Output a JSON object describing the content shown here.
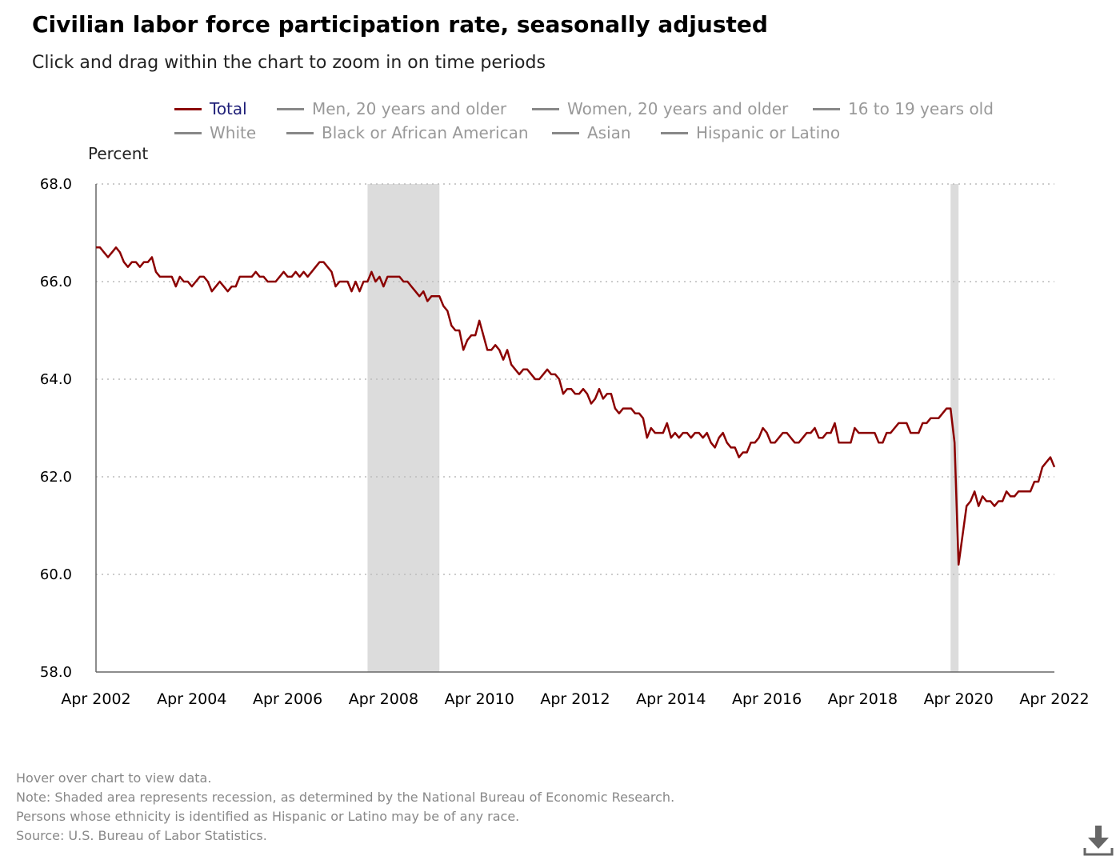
{
  "header": {
    "title": "Civilian labor force participation rate, seasonally adjusted",
    "subtitle": "Click and drag within the chart to zoom in on time periods"
  },
  "legend": {
    "items": [
      {
        "label": "Total",
        "active": true
      },
      {
        "label": "Men, 20 years and older",
        "active": false
      },
      {
        "label": "Women, 20 years and older",
        "active": false
      },
      {
        "label": "16 to 19 years old",
        "active": false
      },
      {
        "label": "White",
        "active": false
      },
      {
        "label": "Black or African American",
        "active": false
      },
      {
        "label": "Asian",
        "active": false
      },
      {
        "label": "Hispanic or Latino",
        "active": false
      }
    ]
  },
  "notes": {
    "hover": "Hover over chart to view data.",
    "recession": "Note: Shaded area represents recession, as determined by the National Bureau of Economic Research.",
    "ethnicity": "Persons whose ethnicity is identified as Hispanic or Latino may be of any race.",
    "source": "Source: U.S. Bureau of Labor Statistics."
  },
  "icons": {
    "download": "download-icon"
  },
  "colors": {
    "series": "#8b0000",
    "recession": "#dcdcdc",
    "gridline": "#bbbbbb",
    "legend_active_text": "#1f1f78",
    "legend_inactive": "#999999"
  },
  "chart_data": {
    "type": "line",
    "title": "Civilian labor force participation rate, seasonally adjusted",
    "ylabel": "Percent",
    "xlabel": "",
    "ylim": [
      58.0,
      68.0
    ],
    "yticks": [
      "58.0",
      "60.0",
      "62.0",
      "64.0",
      "66.0",
      "68.0"
    ],
    "x_start": "Apr 2002",
    "x_end": "Apr 2022",
    "x_ticks": [
      "Apr 2002",
      "Apr 2004",
      "Apr 2006",
      "Apr 2008",
      "Apr 2010",
      "Apr 2012",
      "Apr 2014",
      "Apr 2016",
      "Apr 2018",
      "Apr 2020",
      "Apr 2022"
    ],
    "grid": "horizontal dotted",
    "recessions": [
      {
        "start": "Dec 2007",
        "end": "Jun 2009"
      },
      {
        "start": "Feb 2020",
        "end": "Apr 2020"
      }
    ],
    "series": [
      {
        "name": "Total",
        "x": [
          "Apr 2002",
          "May 2002",
          "Jun 2002",
          "Jul 2002",
          "Aug 2002",
          "Sep 2002",
          "Oct 2002",
          "Nov 2002",
          "Dec 2002",
          "Jan 2003",
          "Feb 2003",
          "Mar 2003",
          "Apr 2003",
          "May 2003",
          "Jun 2003",
          "Jul 2003",
          "Aug 2003",
          "Sep 2003",
          "Oct 2003",
          "Nov 2003",
          "Dec 2003",
          "Jan 2004",
          "Feb 2004",
          "Mar 2004",
          "Apr 2004",
          "May 2004",
          "Jun 2004",
          "Jul 2004",
          "Aug 2004",
          "Sep 2004",
          "Oct 2004",
          "Nov 2004",
          "Dec 2004",
          "Jan 2005",
          "Feb 2005",
          "Mar 2005",
          "Apr 2005",
          "May 2005",
          "Jun 2005",
          "Jul 2005",
          "Aug 2005",
          "Sep 2005",
          "Oct 2005",
          "Nov 2005",
          "Dec 2005",
          "Jan 2006",
          "Feb 2006",
          "Mar 2006",
          "Apr 2006",
          "May 2006",
          "Jun 2006",
          "Jul 2006",
          "Aug 2006",
          "Sep 2006",
          "Oct 2006",
          "Nov 2006",
          "Dec 2006",
          "Jan 2007",
          "Feb 2007",
          "Mar 2007",
          "Apr 2007",
          "May 2007",
          "Jun 2007",
          "Jul 2007",
          "Aug 2007",
          "Sep 2007",
          "Oct 2007",
          "Nov 2007",
          "Dec 2007",
          "Jan 2008",
          "Feb 2008",
          "Mar 2008",
          "Apr 2008",
          "May 2008",
          "Jun 2008",
          "Jul 2008",
          "Aug 2008",
          "Sep 2008",
          "Oct 2008",
          "Nov 2008",
          "Dec 2008",
          "Jan 2009",
          "Feb 2009",
          "Mar 2009",
          "Apr 2009",
          "May 2009",
          "Jun 2009",
          "Jul 2009",
          "Aug 2009",
          "Sep 2009",
          "Oct 2009",
          "Nov 2009",
          "Dec 2009",
          "Jan 2010",
          "Feb 2010",
          "Mar 2010",
          "Apr 2010",
          "May 2010",
          "Jun 2010",
          "Jul 2010",
          "Aug 2010",
          "Sep 2010",
          "Oct 2010",
          "Nov 2010",
          "Dec 2010",
          "Jan 2011",
          "Feb 2011",
          "Mar 2011",
          "Apr 2011",
          "May 2011",
          "Jun 2011",
          "Jul 2011",
          "Aug 2011",
          "Sep 2011",
          "Oct 2011",
          "Nov 2011",
          "Dec 2011",
          "Jan 2012",
          "Feb 2012",
          "Mar 2012",
          "Apr 2012",
          "May 2012",
          "Jun 2012",
          "Jul 2012",
          "Aug 2012",
          "Sep 2012",
          "Oct 2012",
          "Nov 2012",
          "Dec 2012",
          "Jan 2013",
          "Feb 2013",
          "Mar 2013",
          "Apr 2013",
          "May 2013",
          "Jun 2013",
          "Jul 2013",
          "Aug 2013",
          "Sep 2013",
          "Oct 2013",
          "Nov 2013",
          "Dec 2013",
          "Jan 2014",
          "Feb 2014",
          "Mar 2014",
          "Apr 2014",
          "May 2014",
          "Jun 2014",
          "Jul 2014",
          "Aug 2014",
          "Sep 2014",
          "Oct 2014",
          "Nov 2014",
          "Dec 2014",
          "Jan 2015",
          "Feb 2015",
          "Mar 2015",
          "Apr 2015",
          "May 2015",
          "Jun 2015",
          "Jul 2015",
          "Aug 2015",
          "Sep 2015",
          "Oct 2015",
          "Nov 2015",
          "Dec 2015",
          "Jan 2016",
          "Feb 2016",
          "Mar 2016",
          "Apr 2016",
          "May 2016",
          "Jun 2016",
          "Jul 2016",
          "Aug 2016",
          "Sep 2016",
          "Oct 2016",
          "Nov 2016",
          "Dec 2016",
          "Jan 2017",
          "Feb 2017",
          "Mar 2017",
          "Apr 2017",
          "May 2017",
          "Jun 2017",
          "Jul 2017",
          "Aug 2017",
          "Sep 2017",
          "Oct 2017",
          "Nov 2017",
          "Dec 2017",
          "Jan 2018",
          "Feb 2018",
          "Mar 2018",
          "Apr 2018",
          "May 2018",
          "Jun 2018",
          "Jul 2018",
          "Aug 2018",
          "Sep 2018",
          "Oct 2018",
          "Nov 2018",
          "Dec 2018",
          "Jan 2019",
          "Feb 2019",
          "Mar 2019",
          "Apr 2019",
          "May 2019",
          "Jun 2019",
          "Jul 2019",
          "Aug 2019",
          "Sep 2019",
          "Oct 2019",
          "Nov 2019",
          "Dec 2019",
          "Jan 2020",
          "Feb 2020",
          "Mar 2020",
          "Apr 2020",
          "May 2020",
          "Jun 2020",
          "Jul 2020",
          "Aug 2020",
          "Sep 2020",
          "Oct 2020",
          "Nov 2020",
          "Dec 2020",
          "Jan 2021",
          "Feb 2021",
          "Mar 2021",
          "Apr 2021",
          "May 2021",
          "Jun 2021",
          "Jul 2021",
          "Aug 2021",
          "Sep 2021",
          "Oct 2021",
          "Nov 2021",
          "Dec 2021",
          "Jan 2022",
          "Feb 2022",
          "Mar 2022",
          "Apr 2022"
        ],
        "values": [
          66.7,
          66.7,
          66.6,
          66.5,
          66.6,
          66.7,
          66.6,
          66.4,
          66.3,
          66.4,
          66.4,
          66.3,
          66.4,
          66.4,
          66.5,
          66.2,
          66.1,
          66.1,
          66.1,
          66.1,
          65.9,
          66.1,
          66.0,
          66.0,
          65.9,
          66.0,
          66.1,
          66.1,
          66.0,
          65.8,
          65.9,
          66.0,
          65.9,
          65.8,
          65.9,
          65.9,
          66.1,
          66.1,
          66.1,
          66.1,
          66.2,
          66.1,
          66.1,
          66.0,
          66.0,
          66.0,
          66.1,
          66.2,
          66.1,
          66.1,
          66.2,
          66.1,
          66.2,
          66.1,
          66.2,
          66.3,
          66.4,
          66.4,
          66.3,
          66.2,
          65.9,
          66.0,
          66.0,
          66.0,
          65.8,
          66.0,
          65.8,
          66.0,
          66.0,
          66.2,
          66.0,
          66.1,
          65.9,
          66.1,
          66.1,
          66.1,
          66.1,
          66.0,
          66.0,
          65.9,
          65.8,
          65.7,
          65.8,
          65.6,
          65.7,
          65.7,
          65.7,
          65.5,
          65.4,
          65.1,
          65.0,
          65.0,
          64.6,
          64.8,
          64.9,
          64.9,
          65.2,
          64.9,
          64.6,
          64.6,
          64.7,
          64.6,
          64.4,
          64.6,
          64.3,
          64.2,
          64.1,
          64.2,
          64.2,
          64.1,
          64.0,
          64.0,
          64.1,
          64.2,
          64.1,
          64.1,
          64.0,
          63.7,
          63.8,
          63.8,
          63.7,
          63.7,
          63.8,
          63.7,
          63.5,
          63.6,
          63.8,
          63.6,
          63.7,
          63.7,
          63.4,
          63.3,
          63.4,
          63.4,
          63.4,
          63.3,
          63.3,
          63.2,
          62.8,
          63.0,
          62.9,
          62.9,
          62.9,
          63.1,
          62.8,
          62.9,
          62.8,
          62.9,
          62.9,
          62.8,
          62.9,
          62.9,
          62.8,
          62.9,
          62.7,
          62.6,
          62.8,
          62.9,
          62.7,
          62.6,
          62.6,
          62.4,
          62.5,
          62.5,
          62.7,
          62.7,
          62.8,
          63.0,
          62.9,
          62.7,
          62.7,
          62.8,
          62.9,
          62.9,
          62.8,
          62.7,
          62.7,
          62.8,
          62.9,
          62.9,
          63.0,
          62.8,
          62.8,
          62.9,
          62.9,
          63.1,
          62.7,
          62.7,
          62.7,
          62.7,
          63.0,
          62.9,
          62.9,
          62.9,
          62.9,
          62.9,
          62.7,
          62.7,
          62.9,
          62.9,
          63.0,
          63.1,
          63.1,
          63.1,
          62.9,
          62.9,
          62.9,
          63.1,
          63.1,
          63.2,
          63.2,
          63.2,
          63.3,
          63.4,
          63.4,
          62.7,
          60.2,
          60.8,
          61.4,
          61.5,
          61.7,
          61.4,
          61.6,
          61.5,
          61.5,
          61.4,
          61.5,
          61.5,
          61.7,
          61.6,
          61.6,
          61.7,
          61.7,
          61.7,
          61.7,
          61.9,
          61.9,
          62.2,
          62.3,
          62.4,
          62.2
        ]
      }
    ]
  }
}
